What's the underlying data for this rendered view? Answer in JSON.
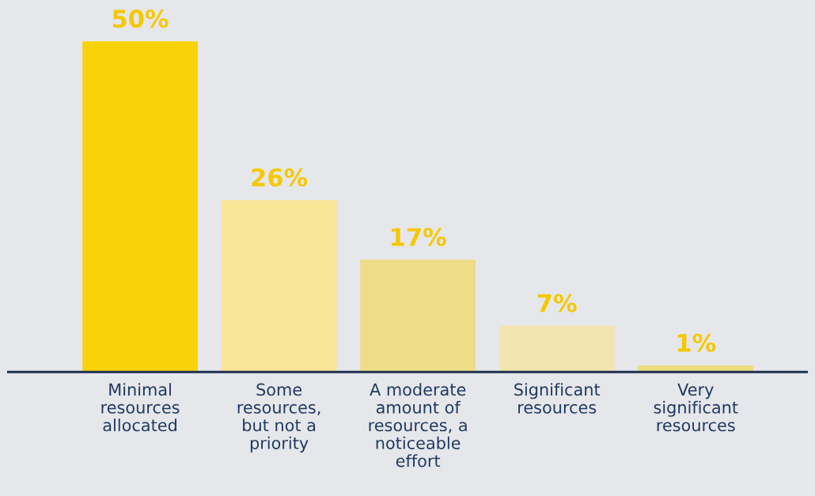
{
  "chart_data": {
    "type": "bar",
    "categories": [
      "Minimal\nresources\nallocated",
      "Some\nresources,\nbut not a\npriority",
      "A moderate\namount of\nresources, a\nnoticeable\neffort",
      "Significant\nresources",
      "Very\nsignificant\nresources"
    ],
    "values": [
      50,
      26,
      17,
      7,
      1
    ],
    "colors": [
      "#f9d30a",
      "#fbe596",
      "#eedc86",
      "#f3e5b0",
      "#eedc80"
    ],
    "value_labels": [
      "50%",
      "26%",
      "17%",
      "7%",
      "1%"
    ],
    "grid": false,
    "legend": false
  }
}
